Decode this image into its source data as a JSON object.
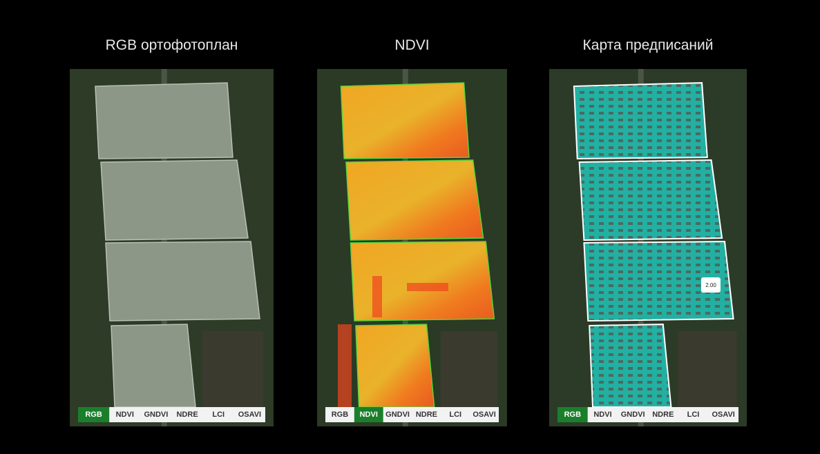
{
  "panels": [
    {
      "title": "RGB ортофотоплан",
      "tabs": [
        {
          "label": "RGB",
          "active": true
        },
        {
          "label": "NDVI",
          "active": false
        },
        {
          "label": "GNDVI",
          "active": false
        },
        {
          "label": "NDRE",
          "active": false
        },
        {
          "label": "LCI",
          "active": false
        },
        {
          "label": "OSAVI",
          "active": false
        }
      ]
    },
    {
      "title": "NDVI",
      "tabs": [
        {
          "label": "RGB",
          "active": false
        },
        {
          "label": "NDVI",
          "active": true
        },
        {
          "label": "GNDVI",
          "active": false
        },
        {
          "label": "NDRE",
          "active": false
        },
        {
          "label": "LCI",
          "active": false
        },
        {
          "label": "OSAVI",
          "active": false
        }
      ]
    },
    {
      "title": "Карта предписаний",
      "tabs": [
        {
          "label": "RGB",
          "active": true
        },
        {
          "label": "NDVI",
          "active": false
        },
        {
          "label": "GNDVI",
          "active": false
        },
        {
          "label": "NDRE",
          "active": false
        },
        {
          "label": "LCI",
          "active": false
        },
        {
          "label": "OSAVI",
          "active": false
        }
      ],
      "tooltip": "2.00"
    }
  ]
}
